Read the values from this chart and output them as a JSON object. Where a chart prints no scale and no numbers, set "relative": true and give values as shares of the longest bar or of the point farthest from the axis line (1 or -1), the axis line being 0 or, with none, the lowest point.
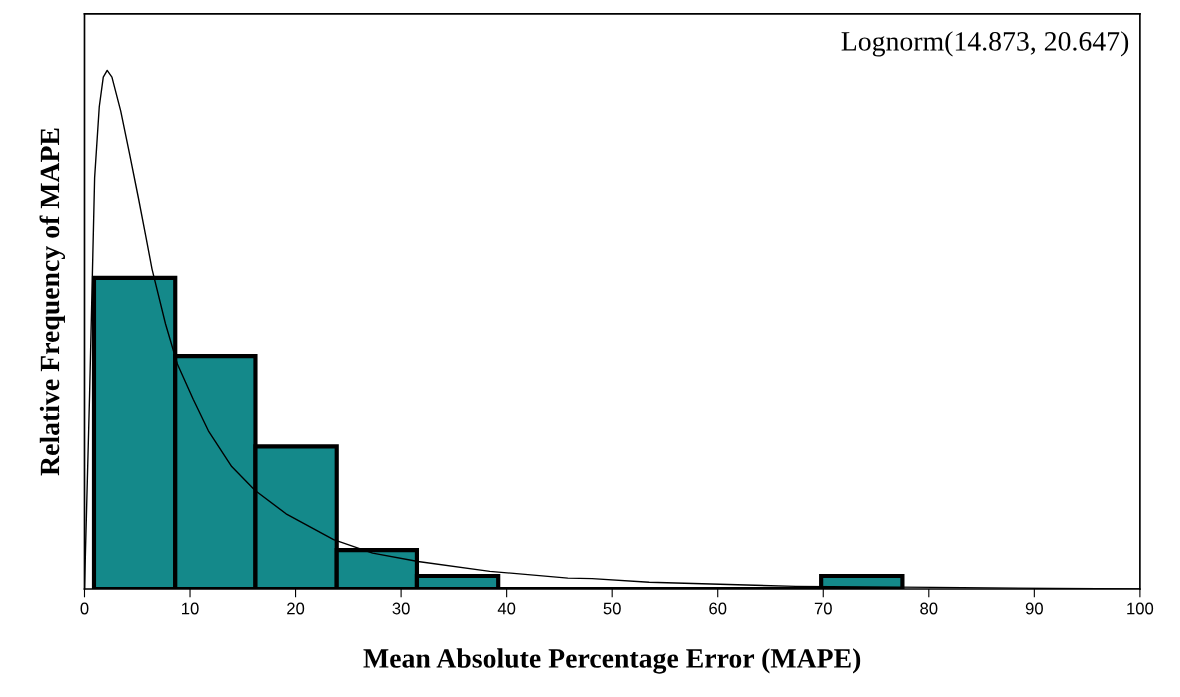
{
  "chart_data": {
    "type": "histogram",
    "relative": true,
    "xlabel": "Mean Absolute Percentage Error (MAPE)",
    "ylabel": "Relative Frequency of MAPE",
    "annotations": [
      "Lognorm(14.873, 20.647)"
    ],
    "bins": [
      0.9,
      8.6,
      16.2,
      23.9,
      31.5,
      39.2,
      69.8,
      77.5
    ],
    "values": [
      0.6,
      0.449,
      0.275,
      0.075,
      0.025,
      0,
      0.025
    ],
    "color": "#14898a",
    "xlim": [
      0,
      100
    ],
    "xticks": [
      0,
      10,
      20,
      30,
      40,
      50,
      60,
      70,
      80,
      90,
      100
    ],
    "tick_labels": "x",
    "grid": false,
    "legend": false,
    "series": [
      {
        "type": "line",
        "color": "#000000",
        "x": [
          0,
          0.48,
          0.96,
          1.4,
          1.78,
          2.15,
          2.6,
          3.43,
          4.28,
          5.1,
          5.83,
          6.4,
          7.68,
          8.8,
          10.3,
          11.74,
          13.95,
          16.17,
          19.1,
          23.6,
          27.3,
          31.6,
          38.4,
          45.8,
          48.1,
          53.5,
          60.2,
          67.4,
          80.5,
          92,
          100
        ],
        "values": [
          0,
          0.373,
          0.793,
          0.93,
          0.987,
          1.0,
          0.987,
          0.922,
          0.838,
          0.755,
          0.678,
          0.617,
          0.511,
          0.434,
          0.366,
          0.305,
          0.236,
          0.19,
          0.145,
          0.095,
          0.069,
          0.053,
          0.034,
          0.021,
          0.02,
          0.013,
          0.009,
          0.005,
          0.003,
          0.001,
          0
        ]
      }
    ]
  }
}
